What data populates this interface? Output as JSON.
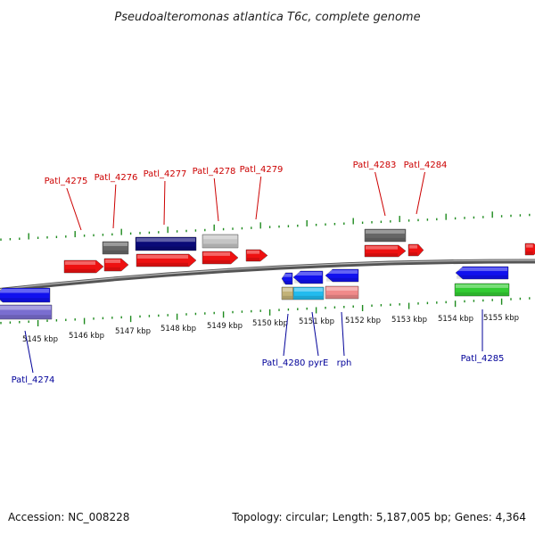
{
  "title": "Pseudoalteromonas atlantica T6c, complete genome",
  "footer": {
    "accession": "Accession: NC_008228",
    "summary": "Topology: circular; Length: 5,187,005 bp; Genes: 4,364"
  },
  "colors": {
    "backbone": "#7a7a7a",
    "tick": "#1d8a1d",
    "forward_cds": "#ee1111",
    "reverse_cds": "#1111ee",
    "forward_label": "#cc0000",
    "reverse_label": "#000099",
    "pseudo_grey": "#666666",
    "light_grey": "#c4c4c4",
    "navy": "#0a0a78",
    "lavender": "#7a6ed0",
    "cyan": "#22bbee",
    "tan": "#c2b278",
    "salmon": "#f08a8a",
    "green": "#33cc33"
  },
  "scale_labels": [
    "5145 kbp",
    "5146 kbp",
    "5147 kbp",
    "5148 kbp",
    "5149 kbp",
    "5150 kbp",
    "5151 kbp",
    "5152 kbp",
    "5153 kbp",
    "5154 kbp",
    "5155 kbp"
  ],
  "forward_labels": [
    "Patl_4275",
    "Patl_4276",
    "Patl_4277",
    "Patl_4278",
    "Patl_4279",
    "Patl_4283",
    "Patl_4284"
  ],
  "reverse_labels": [
    "Patl_4274",
    "Patl_4280",
    "pyrE",
    "rph",
    "Patl_4285"
  ]
}
